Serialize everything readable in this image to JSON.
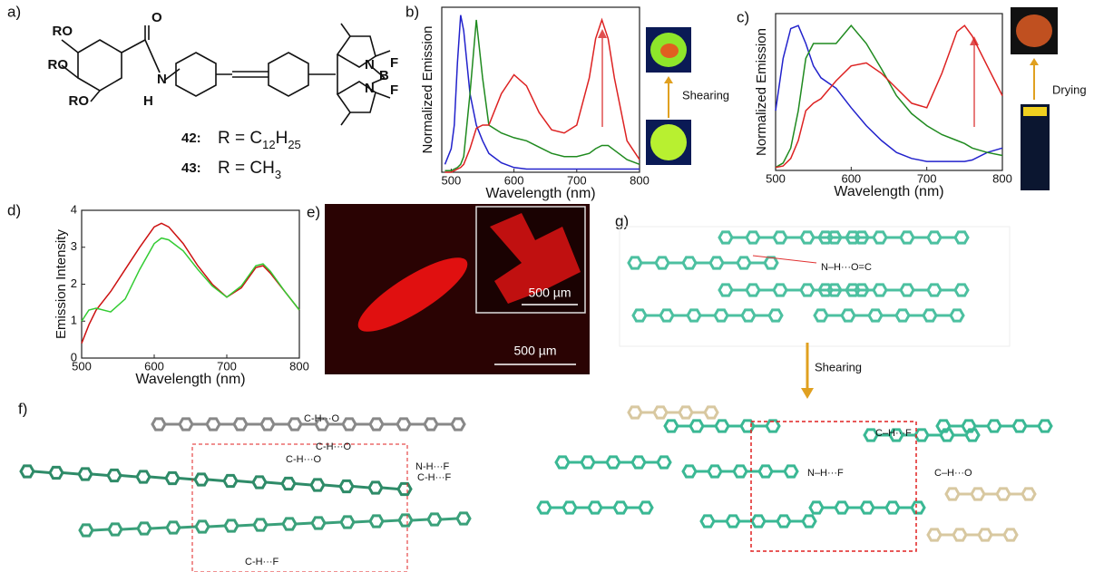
{
  "panels": {
    "a": "a)",
    "b": "b)",
    "c": "c)",
    "d": "d)",
    "e": "e)",
    "f": "f)",
    "g": "g)"
  },
  "panel_a": {
    "labels": [
      "RO",
      "RO",
      "RO",
      "O",
      "N",
      "H",
      "N",
      "B",
      "F",
      "F",
      "N"
    ],
    "compounds": [
      {
        "number": "42:",
        "formula": [
          {
            "text": "R = C"
          },
          {
            "text": "12",
            "sub": true
          },
          {
            "text": "H"
          },
          {
            "text": "25",
            "sub": true
          }
        ]
      },
      {
        "number": "43:",
        "formula": [
          {
            "text": "R = CH"
          },
          {
            "text": "3",
            "sub": true
          }
        ]
      }
    ]
  },
  "panel_b": {
    "arrow_label": "Shearing"
  },
  "panel_c": {
    "arrow_label": "Drying"
  },
  "panel_e": {
    "inset_scale": "500 µm",
    "scale": "500 µm"
  },
  "panel_f": {
    "labels": [
      "C-H···O",
      "C-H···O",
      "C-H···O",
      "N-H···F",
      "C-H···F",
      "C-H···F"
    ]
  },
  "panel_g": {
    "labels": [
      "N–H···O=C",
      "Shearing",
      "C–H···F",
      "N–H···F",
      "C–H···O"
    ]
  },
  "chart_data": [
    {
      "type": "line",
      "xlabel": "Wavelength (nm)",
      "ylabel": "Normalized Emission",
      "x": [
        490,
        500,
        505,
        510,
        515,
        520,
        530,
        540,
        550,
        560,
        580,
        600,
        620,
        640,
        660,
        680,
        700,
        720,
        730,
        740,
        750,
        760,
        780,
        800
      ],
      "xlim": [
        485,
        800
      ],
      "xticks": [
        500,
        600,
        700,
        800
      ],
      "ylim": [
        0,
        1.05
      ],
      "series": [
        {
          "color": "#2222cc",
          "values": [
            0.05,
            0.15,
            0.3,
            0.7,
            1.0,
            0.9,
            0.5,
            0.3,
            0.2,
            0.12,
            0.06,
            0.03,
            0.02,
            0.02,
            0.02,
            0.02,
            0.02,
            0.02,
            0.02,
            0.02,
            0.02,
            0.02,
            0.02,
            0.02
          ]
        },
        {
          "color": "#1f8a1f",
          "values": [
            0.01,
            0.01,
            0.02,
            0.03,
            0.05,
            0.1,
            0.5,
            0.97,
            0.6,
            0.3,
            0.25,
            0.22,
            0.2,
            0.16,
            0.12,
            0.1,
            0.1,
            0.12,
            0.15,
            0.17,
            0.17,
            0.14,
            0.08,
            0.05
          ]
        },
        {
          "color": "#dd2222",
          "values": [
            0,
            0,
            0.01,
            0.02,
            0.03,
            0.05,
            0.15,
            0.28,
            0.3,
            0.3,
            0.5,
            0.62,
            0.55,
            0.38,
            0.27,
            0.25,
            0.3,
            0.6,
            0.85,
            0.97,
            0.85,
            0.6,
            0.2,
            0.08
          ]
        }
      ]
    },
    {
      "type": "line",
      "xlabel": "Wavelength (nm)",
      "ylabel": "Normalized Emission",
      "x": [
        500,
        510,
        520,
        530,
        540,
        550,
        560,
        580,
        600,
        620,
        640,
        660,
        680,
        700,
        720,
        740,
        750,
        760,
        780,
        800
      ],
      "xlim": [
        500,
        800
      ],
      "xticks": [
        500,
        600,
        700,
        800
      ],
      "ylim": [
        0,
        1.05
      ],
      "series": [
        {
          "color": "#2222cc",
          "values": [
            0.4,
            0.75,
            0.95,
            0.97,
            0.85,
            0.7,
            0.62,
            0.55,
            0.42,
            0.3,
            0.2,
            0.12,
            0.08,
            0.06,
            0.06,
            0.06,
            0.06,
            0.07,
            0.12,
            0.15
          ]
        },
        {
          "color": "#1f8a1f",
          "values": [
            0.02,
            0.05,
            0.15,
            0.4,
            0.75,
            0.85,
            0.85,
            0.85,
            0.97,
            0.85,
            0.68,
            0.5,
            0.38,
            0.3,
            0.24,
            0.2,
            0.18,
            0.15,
            0.12,
            0.1
          ]
        },
        {
          "color": "#dd2222",
          "values": [
            0.02,
            0.03,
            0.08,
            0.2,
            0.4,
            0.45,
            0.48,
            0.6,
            0.7,
            0.72,
            0.65,
            0.55,
            0.45,
            0.42,
            0.65,
            0.93,
            0.97,
            0.9,
            0.7,
            0.5
          ]
        }
      ]
    },
    {
      "type": "line",
      "xlabel": "Wavelength (nm)",
      "ylabel": "Emission Intensity",
      "x": [
        500,
        510,
        520,
        540,
        560,
        580,
        600,
        610,
        620,
        640,
        660,
        680,
        700,
        720,
        740,
        750,
        760,
        780,
        800
      ],
      "xlim": [
        500,
        800
      ],
      "xticks": [
        500,
        600,
        700,
        800
      ],
      "ylim": [
        0,
        4
      ],
      "yticks": [
        0,
        1,
        2,
        3,
        4
      ],
      "series": [
        {
          "color": "#cc1111",
          "values": [
            0.4,
            0.9,
            1.3,
            1.8,
            2.4,
            3.0,
            3.55,
            3.65,
            3.55,
            3.1,
            2.5,
            2.0,
            1.65,
            1.9,
            2.45,
            2.5,
            2.3,
            1.8,
            1.3
          ]
        },
        {
          "color": "#33cc33",
          "values": [
            1.0,
            1.3,
            1.35,
            1.25,
            1.6,
            2.4,
            3.1,
            3.25,
            3.2,
            2.9,
            2.4,
            1.95,
            1.65,
            1.95,
            2.5,
            2.55,
            2.35,
            1.8,
            1.3
          ]
        }
      ]
    }
  ]
}
